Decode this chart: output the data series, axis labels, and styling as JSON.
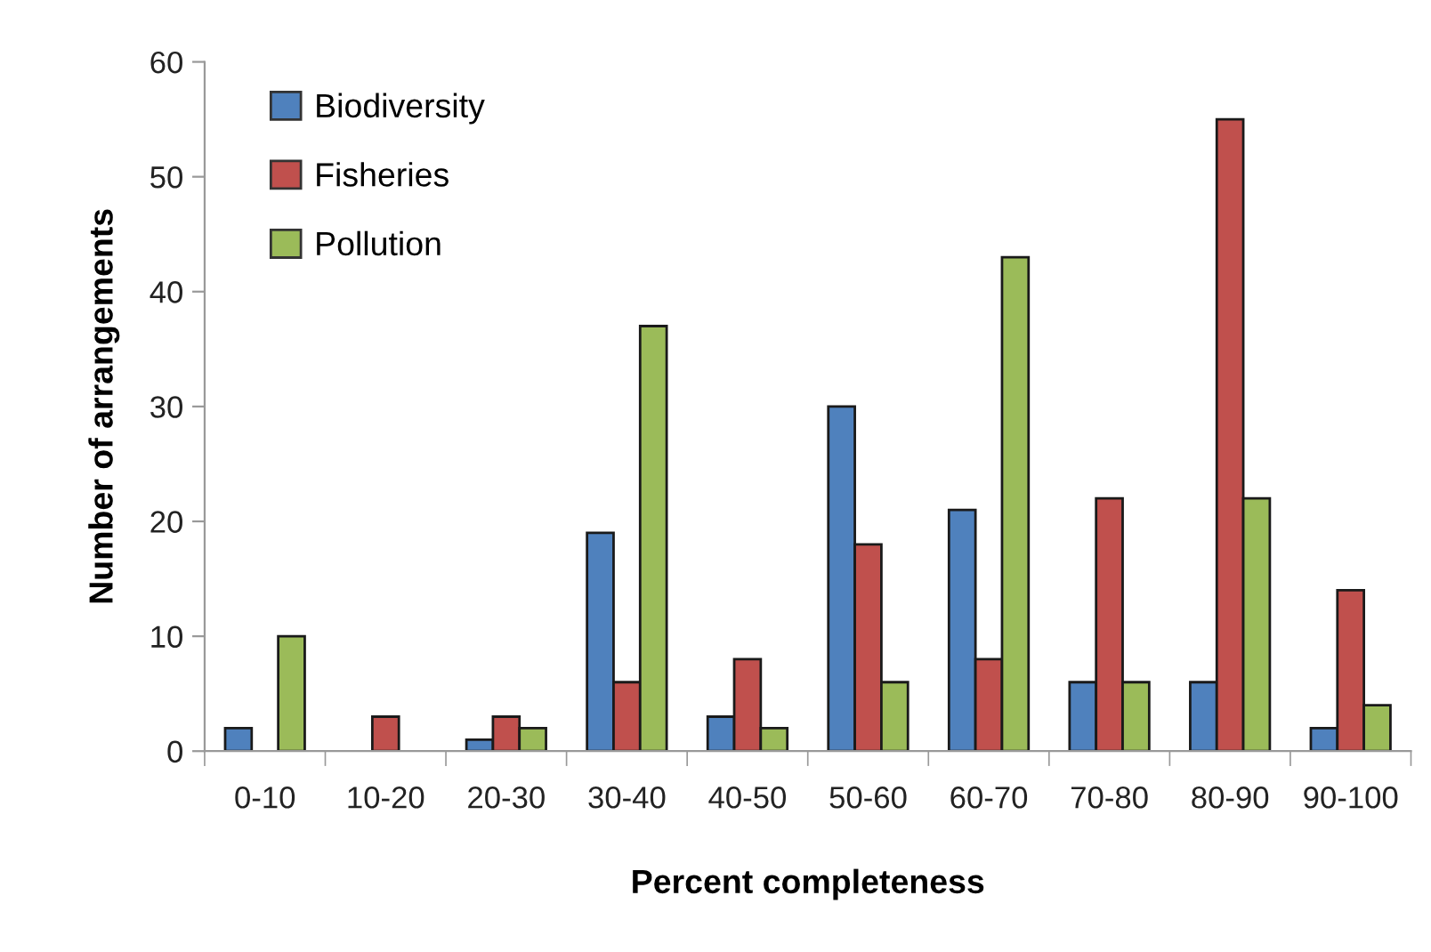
{
  "chart_data": {
    "type": "bar",
    "xlabel": "Percent completeness",
    "ylabel": "Number of arrangements",
    "categories": [
      "0-10",
      "10-20",
      "20-30",
      "30-40",
      "40-50",
      "50-60",
      "60-70",
      "70-80",
      "80-90",
      "90-100"
    ],
    "series": [
      {
        "name": "Biodiversity",
        "color": "#4f81bd",
        "values": [
          2,
          0,
          1,
          19,
          3,
          30,
          21,
          6,
          6,
          2
        ]
      },
      {
        "name": "Fisheries",
        "color": "#c0504d",
        "values": [
          0,
          3,
          3,
          6,
          8,
          18,
          8,
          22,
          55,
          14
        ]
      },
      {
        "name": "Pollution",
        "color": "#9bbb59",
        "values": [
          10,
          0,
          2,
          37,
          2,
          6,
          43,
          6,
          22,
          4
        ]
      }
    ],
    "ylim": [
      0,
      60
    ],
    "yticks": [
      0,
      10,
      20,
      30,
      40,
      50,
      60
    ],
    "grid": false,
    "legend": "top left"
  }
}
